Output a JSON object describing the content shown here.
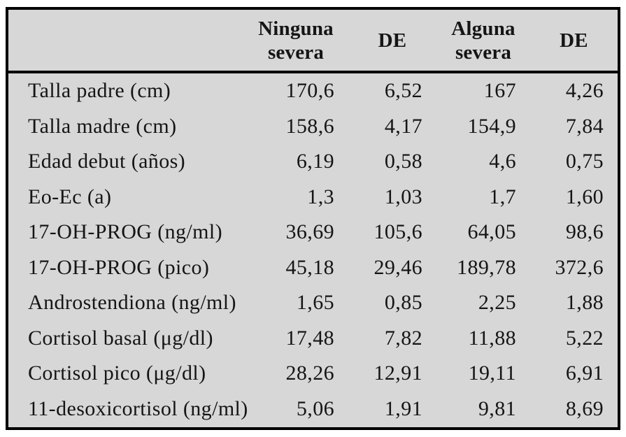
{
  "table": {
    "headers": [
      "Ninguna\nsevera",
      "DE",
      "Alguna\nsevera",
      "DE"
    ],
    "rows": [
      {
        "label": "Talla padre (cm)",
        "values": [
          "170,6",
          "6,52",
          "167",
          "4,26"
        ]
      },
      {
        "label": "Talla madre (cm)",
        "values": [
          "158,6",
          "4,17",
          "154,9",
          "7,84"
        ]
      },
      {
        "label": "Edad debut (años)",
        "values": [
          "6,19",
          "0,58",
          "4,6",
          "0,75"
        ]
      },
      {
        "label": "Eo-Ec (a)",
        "values": [
          "1,3",
          "1,03",
          "1,7",
          "1,60"
        ]
      },
      {
        "label": "17-OH-PROG (ng/ml)",
        "values": [
          "36,69",
          "105,6",
          "64,05",
          "98,6"
        ]
      },
      {
        "label": "17-OH-PROG (pico)",
        "values": [
          "45,18",
          "29,46",
          "189,78",
          "372,6"
        ]
      },
      {
        "label": "Androstendiona (ng/ml)",
        "values": [
          "1,65",
          "0,85",
          "2,25",
          "1,88"
        ]
      },
      {
        "label": "Cortisol basal (μg/dl)",
        "values": [
          "17,48",
          "7,82",
          "11,88",
          "5,22"
        ]
      },
      {
        "label": "Cortisol pico (μg/dl)",
        "values": [
          "28,26",
          "12,91",
          "19,11",
          "6,91"
        ]
      },
      {
        "label": "11-desoxicortisol (ng/ml)",
        "values": [
          "5,06",
          "1,91",
          "9,81",
          "8,69"
        ]
      }
    ]
  },
  "colors": {
    "table_background": "#d7d7d7",
    "border": "#000000",
    "text": "#151515"
  }
}
